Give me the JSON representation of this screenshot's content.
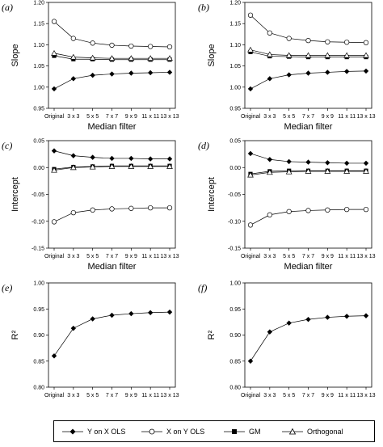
{
  "figure": {
    "x_categories": [
      "Original",
      "3 x 3",
      "5 x 5",
      "7 x 7",
      "9 x 9",
      "11 x 11",
      "13 x 13"
    ]
  },
  "chart_data": [
    {
      "id": "a",
      "letter": "(a)",
      "type": "line",
      "xlabel": "Median filter",
      "ylabel": "Slope",
      "ylim": [
        0.95,
        1.2
      ],
      "yticks": [
        0.95,
        1.0,
        1.05,
        1.1,
        1.15,
        1.2
      ],
      "ytick_decimals": 2,
      "categories": [
        "Original",
        "3 x 3",
        "5 x 5",
        "7 x 7",
        "9 x 9",
        "11 x 11",
        "13 x 13"
      ],
      "grid": false,
      "series": [
        {
          "name": "Y on X OLS",
          "marker": "diamond-filled",
          "values": [
            0.996,
            1.02,
            1.028,
            1.031,
            1.033,
            1.034,
            1.035
          ]
        },
        {
          "name": "X on Y OLS",
          "marker": "circle-open",
          "values": [
            1.155,
            1.115,
            1.104,
            1.099,
            1.097,
            1.096,
            1.095
          ]
        },
        {
          "name": "GM",
          "marker": "square-filled",
          "values": [
            1.074,
            1.066,
            1.066,
            1.065,
            1.065,
            1.065,
            1.065
          ]
        },
        {
          "name": "Orthogonal",
          "marker": "triangle-open",
          "values": [
            1.08,
            1.071,
            1.069,
            1.068,
            1.068,
            1.068,
            1.068
          ]
        }
      ]
    },
    {
      "id": "b",
      "letter": "(b)",
      "type": "line",
      "xlabel": "Median filter",
      "ylabel": "Slope",
      "ylim": [
        0.95,
        1.2
      ],
      "yticks": [
        0.95,
        1.0,
        1.05,
        1.1,
        1.15,
        1.2
      ],
      "ytick_decimals": 2,
      "categories": [
        "Original",
        "3 x 3",
        "5 x 5",
        "7 x 7",
        "9 x 9",
        "11 x 11",
        "13 x 13"
      ],
      "grid": false,
      "series": [
        {
          "name": "Y on X OLS",
          "marker": "diamond-filled",
          "values": [
            0.996,
            1.02,
            1.029,
            1.033,
            1.035,
            1.037,
            1.038
          ]
        },
        {
          "name": "X on Y OLS",
          "marker": "circle-open",
          "values": [
            1.17,
            1.128,
            1.115,
            1.11,
            1.107,
            1.106,
            1.105
          ]
        },
        {
          "name": "GM",
          "marker": "square-filled",
          "values": [
            1.083,
            1.073,
            1.072,
            1.071,
            1.071,
            1.071,
            1.071
          ]
        },
        {
          "name": "Orthogonal",
          "marker": "triangle-open",
          "values": [
            1.088,
            1.077,
            1.075,
            1.075,
            1.075,
            1.075,
            1.075
          ]
        }
      ]
    },
    {
      "id": "c",
      "letter": "(c)",
      "type": "line",
      "xlabel": "Median filter",
      "ylabel": "Intercept",
      "ylim": [
        -0.15,
        0.05
      ],
      "yticks": [
        -0.15,
        -0.1,
        -0.05,
        0.0,
        0.05
      ],
      "ytick_decimals": 2,
      "categories": [
        "Original",
        "3 x 3",
        "5 x 5",
        "7 x 7",
        "9 x 9",
        "11 x 11",
        "13 x 13"
      ],
      "grid": false,
      "series": [
        {
          "name": "Y on X OLS",
          "marker": "diamond-filled",
          "values": [
            0.031,
            0.022,
            0.019,
            0.017,
            0.017,
            0.016,
            0.016
          ]
        },
        {
          "name": "X on Y OLS",
          "marker": "circle-open",
          "values": [
            -0.101,
            -0.084,
            -0.079,
            -0.077,
            -0.076,
            -0.075,
            -0.075
          ]
        },
        {
          "name": "GM",
          "marker": "square-filled",
          "values": [
            -0.003,
            0.001,
            0.002,
            0.003,
            0.003,
            0.003,
            0.003
          ]
        },
        {
          "name": "Orthogonal",
          "marker": "triangle-open",
          "values": [
            -0.005,
            0.0,
            0.001,
            0.002,
            0.002,
            0.002,
            0.002
          ]
        }
      ]
    },
    {
      "id": "d",
      "letter": "(d)",
      "type": "line",
      "xlabel": "Median filter",
      "ylabel": "Intercept",
      "ylim": [
        -0.15,
        0.05
      ],
      "yticks": [
        -0.15,
        -0.1,
        -0.05,
        0.0,
        0.05
      ],
      "ytick_decimals": 2,
      "categories": [
        "Original",
        "3 x 3",
        "5 x 5",
        "7 x 7",
        "9 x 9",
        "11 x 11",
        "13 x 13"
      ],
      "grid": false,
      "series": [
        {
          "name": "Y on X OLS",
          "marker": "diamond-filled",
          "values": [
            0.026,
            0.015,
            0.011,
            0.01,
            0.009,
            0.008,
            0.008
          ]
        },
        {
          "name": "X on Y OLS",
          "marker": "circle-open",
          "values": [
            -0.107,
            -0.088,
            -0.082,
            -0.08,
            -0.079,
            -0.078,
            -0.078
          ]
        },
        {
          "name": "GM",
          "marker": "square-filled",
          "values": [
            -0.012,
            -0.007,
            -0.006,
            -0.006,
            -0.006,
            -0.006,
            -0.006
          ]
        },
        {
          "name": "Orthogonal",
          "marker": "triangle-open",
          "values": [
            -0.014,
            -0.009,
            -0.008,
            -0.007,
            -0.007,
            -0.007,
            -0.007
          ]
        }
      ]
    },
    {
      "id": "e",
      "letter": "(e)",
      "type": "line",
      "xlabel": "",
      "ylabel": "R²",
      "ylim": [
        0.8,
        1.0
      ],
      "yticks": [
        0.8,
        0.85,
        0.9,
        0.95,
        1.0
      ],
      "ytick_decimals": 2,
      "categories": [
        "Original",
        "3 x 3",
        "5 x 5",
        "7 x 7",
        "9 x 9",
        "11 x 11",
        "13 x 13"
      ],
      "grid": false,
      "series": [
        {
          "marker": "diamond-filled",
          "values": [
            0.86,
            0.913,
            0.931,
            0.938,
            0.941,
            0.943,
            0.944
          ]
        }
      ]
    },
    {
      "id": "f",
      "letter": "(f)",
      "type": "line",
      "xlabel": "",
      "ylabel": "R²",
      "ylim": [
        0.8,
        1.0
      ],
      "yticks": [
        0.8,
        0.85,
        0.9,
        0.95,
        1.0
      ],
      "ytick_decimals": 2,
      "categories": [
        "Original",
        "3 x 3",
        "5 x 5",
        "7 x 7",
        "9 x 9",
        "11 x 11",
        "13 x 13"
      ],
      "grid": false,
      "series": [
        {
          "marker": "diamond-filled",
          "values": [
            0.85,
            0.906,
            0.923,
            0.93,
            0.934,
            0.936,
            0.937
          ]
        }
      ]
    }
  ],
  "legend": {
    "placement": "bottom",
    "items": [
      {
        "label": "Y on X OLS",
        "marker": "diamond-filled"
      },
      {
        "label": "X on Y OLS",
        "marker": "circle-open"
      },
      {
        "label": "GM",
        "marker": "square-filled"
      },
      {
        "label": "Orthogonal",
        "marker": "triangle-open"
      }
    ]
  }
}
